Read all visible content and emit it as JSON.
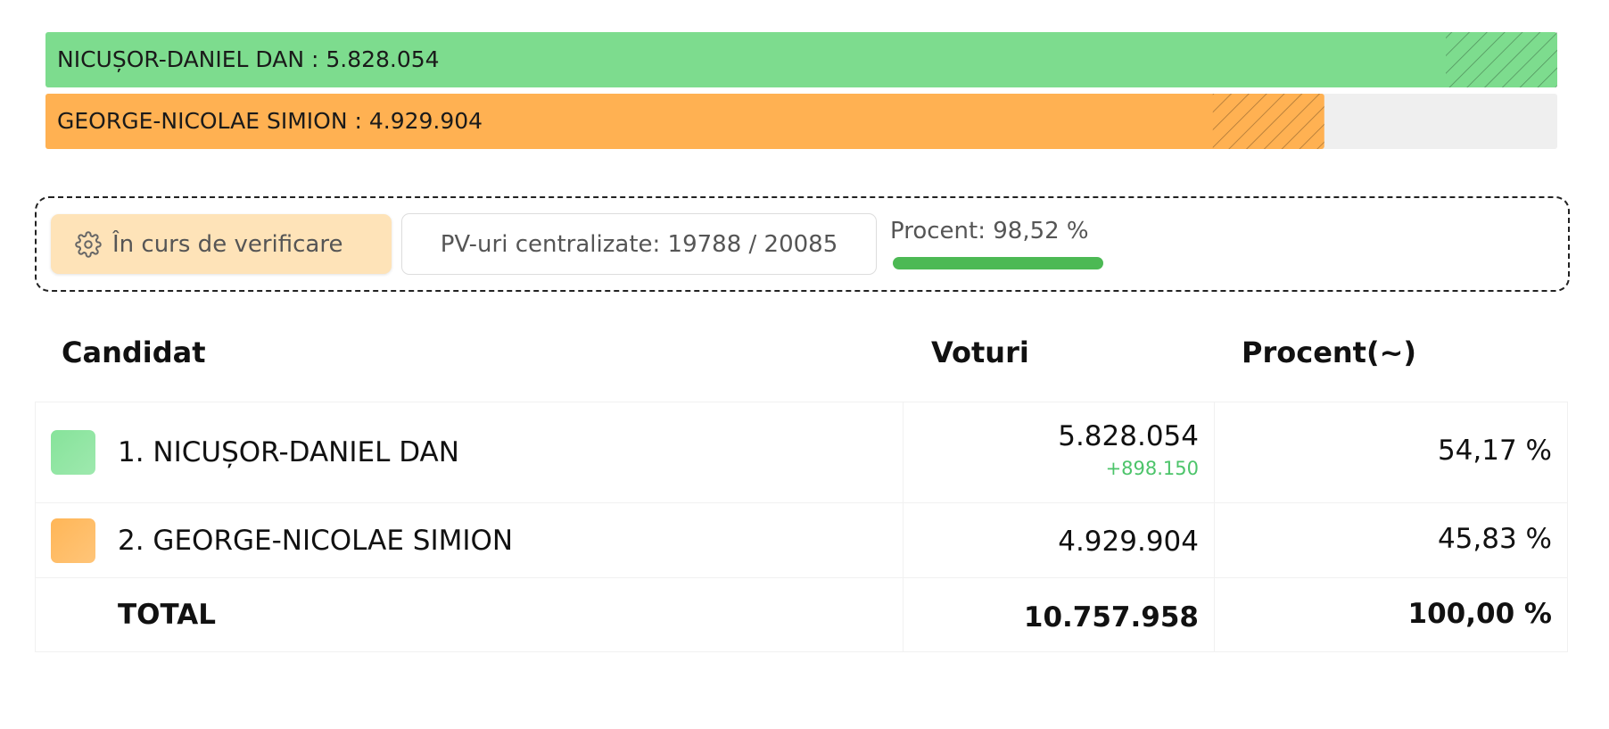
{
  "bars": [
    {
      "label": "NICUȘOR-DANIEL DAN : 5.828.054",
      "votes": 5828054,
      "color": "#7ddc8e"
    },
    {
      "label": "GEORGE-NICOLAE SIMION : 4.929.904",
      "votes": 4929904,
      "color": "#ffb152"
    }
  ],
  "status": {
    "state": "În curs de verificare",
    "counted": "PV-uri centralizate: 19788 / 20085",
    "progress": {
      "label": "Procent: 98,52 %",
      "value": 98.52,
      "color": "#4cb954"
    }
  },
  "table": {
    "headers": [
      "Candidat",
      "Voturi",
      "Procent(~)"
    ],
    "rows": [
      {
        "color": "#86e39a",
        "name": "1. NICUȘOR-DANIEL DAN",
        "votes": "5.828.054",
        "change": "+898.150",
        "percent": "54,17 %"
      },
      {
        "color": "#ffb657",
        "name": "2. GEORGE-NICOLAE SIMION",
        "votes": "4.929.904",
        "percent": "45,83 %"
      },
      {
        "name": "TOTAL",
        "votes": "10.757.958",
        "percent": "100,00 %"
      }
    ]
  }
}
